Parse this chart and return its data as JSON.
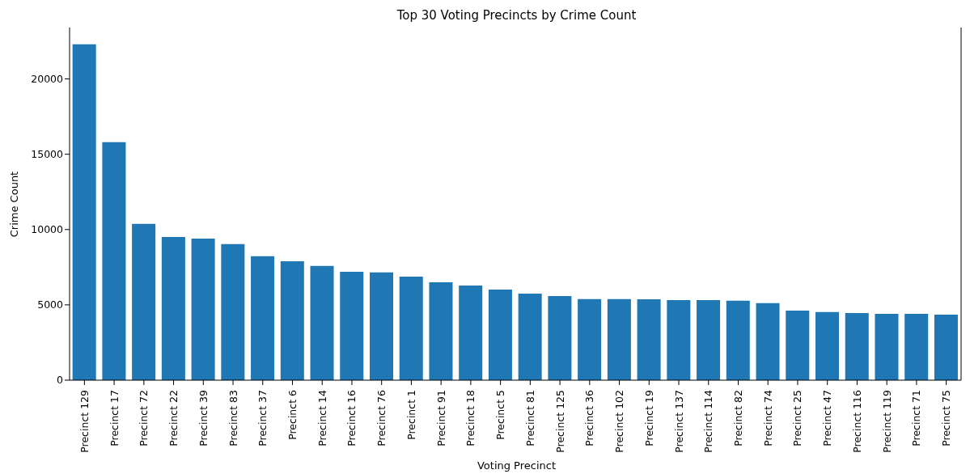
{
  "chart_data": {
    "type": "bar",
    "title": "Top 30 Voting Precincts by Crime Count",
    "xlabel": "Voting Precinct",
    "ylabel": "Crime Count",
    "categories": [
      "Precinct 129",
      "Precinct 17",
      "Precinct 72",
      "Precinct 22",
      "Precinct 39",
      "Precinct 83",
      "Precinct 37",
      "Precinct 6",
      "Precinct 14",
      "Precinct 16",
      "Precinct 76",
      "Precinct 1",
      "Precinct 91",
      "Precinct 18",
      "Precinct 5",
      "Precinct 81",
      "Precinct 125",
      "Precinct 36",
      "Precinct 102",
      "Precinct 19",
      "Precinct 137",
      "Precinct 114",
      "Precinct 82",
      "Precinct 74",
      "Precinct 25",
      "Precinct 47",
      "Precinct 116",
      "Precinct 119",
      "Precinct 71",
      "Precinct 75"
    ],
    "values": [
      22300,
      15800,
      10380,
      9500,
      9400,
      9030,
      8230,
      7900,
      7580,
      7200,
      7150,
      6880,
      6500,
      6290,
      6020,
      5750,
      5590,
      5380,
      5380,
      5370,
      5320,
      5320,
      5270,
      5110,
      4620,
      4520,
      4460,
      4410,
      4410,
      4350
    ],
    "color": "#1f77b4",
    "ylim": [
      0,
      23415
    ],
    "yticks": [
      0,
      5000,
      10000,
      15000,
      20000
    ],
    "grid": false,
    "legend": false
  }
}
